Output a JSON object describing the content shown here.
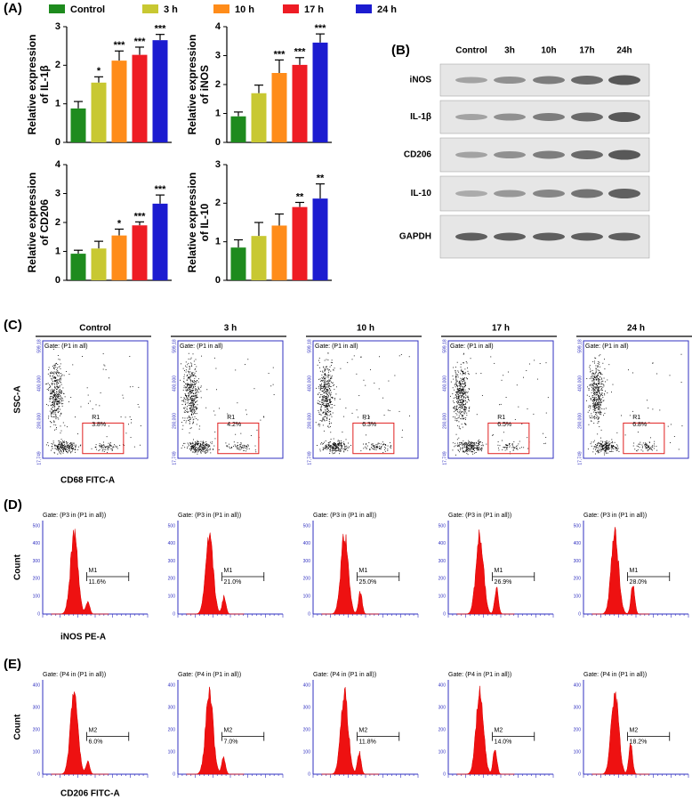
{
  "panel_labels": [
    "(A)",
    "(B)",
    "(C)",
    "(D)",
    "(E)"
  ],
  "legend": [
    {
      "name": "Control",
      "color": "#1e8b1e"
    },
    {
      "name": "3 h",
      "color": "#c8c832"
    },
    {
      "name": "10 h",
      "color": "#ff8c1a"
    },
    {
      "name": "17 h",
      "color": "#ee1c24"
    },
    {
      "name": "24 h",
      "color": "#1c1cd0"
    }
  ],
  "chart_data": [
    {
      "type": "bar",
      "ylabel": [
        "Relative expression",
        "of IL-1β"
      ],
      "ylim": [
        0,
        3
      ],
      "yticks": [
        0,
        1,
        2,
        3
      ],
      "values": [
        0.88,
        1.55,
        2.12,
        2.27,
        2.65
      ],
      "errors": [
        0.18,
        0.15,
        0.25,
        0.2,
        0.15
      ],
      "annotations": [
        null,
        "*",
        "***",
        "***",
        "***"
      ]
    },
    {
      "type": "bar",
      "ylabel": [
        "Relative expression",
        "of iNOS"
      ],
      "ylim": [
        0,
        4
      ],
      "yticks": [
        0,
        1,
        2,
        3,
        4
      ],
      "values": [
        0.9,
        1.7,
        2.4,
        2.68,
        3.45
      ],
      "errors": [
        0.15,
        0.28,
        0.45,
        0.25,
        0.3
      ],
      "annotations": [
        null,
        null,
        "***",
        "***",
        "***"
      ]
    },
    {
      "type": "bar",
      "ylabel": [
        "Relative expression",
        "of CD206"
      ],
      "ylim": [
        0,
        4
      ],
      "yticks": [
        0,
        1,
        2,
        3,
        4
      ],
      "values": [
        0.92,
        1.1,
        1.55,
        1.9,
        2.65
      ],
      "errors": [
        0.12,
        0.25,
        0.22,
        0.12,
        0.3
      ],
      "annotations": [
        null,
        null,
        "*",
        "***",
        "***"
      ]
    },
    {
      "type": "bar",
      "ylabel": [
        "Relative expression",
        "of IL-10"
      ],
      "ylim": [
        0,
        3
      ],
      "yticks": [
        0,
        1,
        2,
        3
      ],
      "values": [
        0.85,
        1.15,
        1.42,
        1.9,
        2.12
      ],
      "errors": [
        0.2,
        0.35,
        0.3,
        0.12,
        0.38
      ],
      "annotations": [
        null,
        null,
        null,
        "**",
        "**"
      ]
    }
  ],
  "blot": {
    "columns": [
      "Control",
      "3h",
      "10h",
      "17h",
      "24h"
    ],
    "rows": [
      "iNOS",
      "IL-1β",
      "CD206",
      "IL-10",
      "GAPDH"
    ]
  },
  "flow": {
    "columns": [
      "Control",
      "3 h",
      "10 h",
      "17 h",
      "24 h"
    ],
    "scatter": {
      "gate": "Gate: (P1 in all)",
      "region": "R1",
      "percentages": [
        "3.8%",
        "4.2%",
        "6.3%",
        "6.5%",
        "6.8%"
      ],
      "ylabel": "SSC-A",
      "xlabel": "CD68 FITC-A",
      "yticks": [
        "17,749",
        "200,000",
        "400,000",
        "599,18"
      ]
    },
    "hist_inos": {
      "gate": "Gate: (P3 in (P1 in all))",
      "marker": "M1",
      "percentages": [
        "11.6%",
        "21.0%",
        "25.0%",
        "26.9%",
        "28.0%"
      ],
      "ylabel": "Count",
      "xlabel": "iNOS PE-A",
      "yticks": [
        "0",
        "100",
        "200",
        "300",
        "400",
        "500"
      ]
    },
    "hist_cd206": {
      "gate": "Gate: (P4 in (P1 in all))",
      "marker": "M2",
      "percentages": [
        "6.0%",
        "7.0%",
        "11.8%",
        "14.0%",
        "18.2%"
      ],
      "ylabel": "Count",
      "xlabel": "CD206 FITC-A",
      "yticks": [
        "0",
        "100",
        "200",
        "300",
        "400"
      ]
    }
  }
}
